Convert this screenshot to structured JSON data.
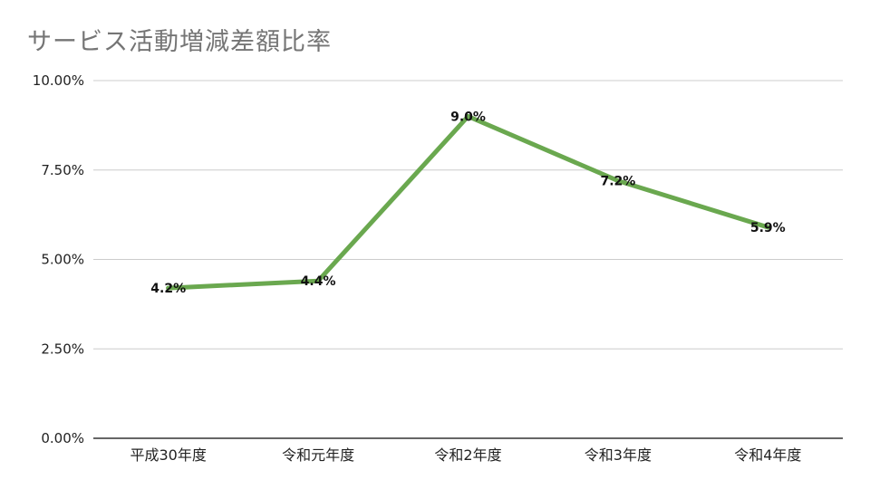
{
  "chart_data": {
    "type": "line",
    "title": "サービス活動増減差額比率",
    "categories": [
      "平成30年度",
      "令和元年度",
      "令和2年度",
      "令和3年度",
      "令和4年度"
    ],
    "series": [
      {
        "values": [
          4.2,
          4.4,
          9.0,
          7.2,
          5.9
        ],
        "labels": [
          "4.2%",
          "4.4%",
          "9.0%",
          "7.2%",
          "5.9%"
        ],
        "color": "#6aa84f"
      }
    ],
    "ylim": [
      0,
      10
    ],
    "yticks": [
      0,
      2.5,
      5,
      7.5,
      10
    ],
    "ytick_labels": [
      "0.00%",
      "2.50%",
      "5.00%",
      "7.50%",
      "10.00%"
    ],
    "grid": true,
    "legend": "none"
  }
}
